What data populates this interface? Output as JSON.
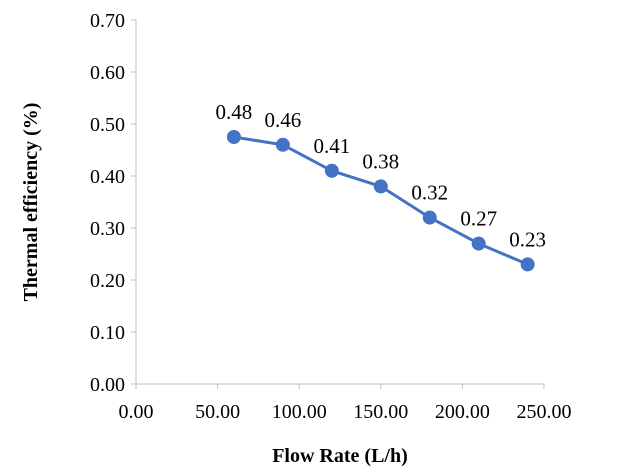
{
  "chart_data": {
    "type": "line",
    "title": "",
    "xlabel": "Flow Rate (L/h)",
    "ylabel": "Thermal efficiency (%)",
    "xlim": [
      0,
      250
    ],
    "ylim": [
      0,
      0.7
    ],
    "x_ticks": [
      "0.00",
      "50.00",
      "100.00",
      "150.00",
      "200.00",
      "250.00"
    ],
    "y_ticks": [
      "0.00",
      "0.10",
      "0.20",
      "0.30",
      "0.40",
      "0.50",
      "0.60",
      "0.70"
    ],
    "grid": false,
    "legend": "none",
    "color": "#4472C4",
    "series": [
      {
        "x": [
          60,
          90,
          120,
          150,
          180,
          210,
          240
        ],
        "y": [
          0.475,
          0.46,
          0.41,
          0.38,
          0.32,
          0.27,
          0.23
        ],
        "labels": [
          "0.48",
          "0.46",
          "0.41",
          "0.38",
          "0.32",
          "0.27",
          "0.23"
        ]
      }
    ]
  }
}
